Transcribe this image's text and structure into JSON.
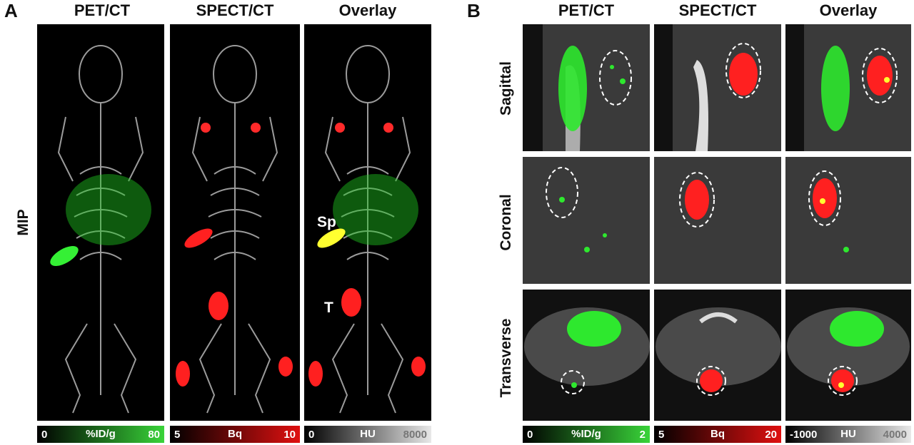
{
  "panel_a": {
    "letter": "A",
    "titles": [
      "PET/CT",
      "SPECT/CT",
      "Overlay"
    ],
    "row_label": "MIP",
    "annotations": {
      "spleen": "Sp",
      "tumor": "T"
    },
    "colorbars": [
      {
        "min": "0",
        "unit": "%ID/g",
        "max": "80",
        "color": "#39d439"
      },
      {
        "min": "5",
        "unit": "Bq",
        "max": "10",
        "color": "#e01010"
      },
      {
        "min": "0",
        "unit": "HU",
        "max": "8000",
        "color": "#e8e8e8"
      }
    ]
  },
  "panel_b": {
    "letter": "B",
    "titles": [
      "PET/CT",
      "SPECT/CT",
      "Overlay"
    ],
    "row_labels": [
      "Sagittal",
      "Coronal",
      "Transverse"
    ],
    "colorbars": [
      {
        "min": "0",
        "unit": "%ID/g",
        "max": "2",
        "color": "#39d439"
      },
      {
        "min": "5",
        "unit": "Bq",
        "max": "20",
        "color": "#e01010"
      },
      {
        "min": "-1000",
        "unit": "HU",
        "max": "4000",
        "color": "#e8e8e8"
      }
    ]
  },
  "colors": {
    "pet": "#2ee82e",
    "spect": "#ff2020",
    "overlap": "#ffff30",
    "ct": "#bbbbbb"
  }
}
